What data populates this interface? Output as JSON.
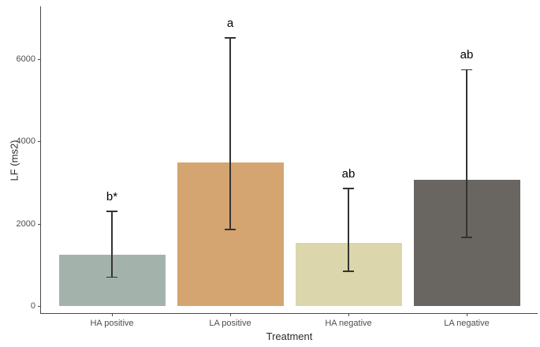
{
  "chart_data": {
    "type": "bar",
    "title": "",
    "xlabel": "Treatment",
    "ylabel": "LF (ms2)",
    "categories": [
      "HA positive",
      "LA positive",
      "HA negative",
      "LA negative"
    ],
    "values": [
      1240,
      3480,
      1530,
      3060
    ],
    "error_low": [
      690,
      1850,
      830,
      1650
    ],
    "error_high": [
      2290,
      6500,
      2840,
      5730
    ],
    "sig_letters": [
      "b*",
      "a",
      "ab",
      "ab"
    ],
    "bar_colors": [
      "#a3b3ac",
      "#d4a571",
      "#dbd6ab",
      "#696661"
    ],
    "y_ticks": [
      0,
      2000,
      4000,
      6000
    ],
    "ylim": [
      0,
      7300
    ],
    "grid": "off",
    "legend": "none",
    "errorbar_color": "#333333",
    "axis_color": "#4a4a4a",
    "tick_label_color": "#4d4d4d"
  }
}
